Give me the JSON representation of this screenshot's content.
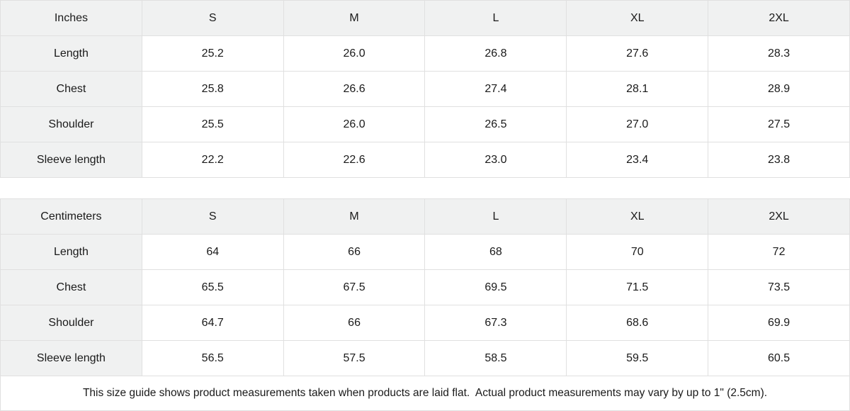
{
  "style": {
    "header_bg": "#f0f1f1",
    "border_color": "#e0e0e0",
    "text_color": "#1a1a1a",
    "background": "#ffffff"
  },
  "chart_data": [
    {
      "type": "table",
      "name": "inches",
      "unit_label": "Inches",
      "columns": [
        "S",
        "M",
        "L",
        "XL",
        "2XL"
      ],
      "rows": [
        {
          "label": "Length",
          "values": [
            "25.2",
            "26.0",
            "26.8",
            "27.6",
            "28.3"
          ]
        },
        {
          "label": "Chest",
          "values": [
            "25.8",
            "26.6",
            "27.4",
            "28.1",
            "28.9"
          ]
        },
        {
          "label": "Shoulder",
          "values": [
            "25.5",
            "26.0",
            "26.5",
            "27.0",
            "27.5"
          ]
        },
        {
          "label": "Sleeve length",
          "values": [
            "22.2",
            "22.6",
            "23.0",
            "23.4",
            "23.8"
          ]
        }
      ]
    },
    {
      "type": "table",
      "name": "centimeters",
      "unit_label": "Centimeters",
      "columns": [
        "S",
        "M",
        "L",
        "XL",
        "2XL"
      ],
      "rows": [
        {
          "label": "Length",
          "values": [
            "64",
            "66",
            "68",
            "70",
            "72"
          ]
        },
        {
          "label": "Chest",
          "values": [
            "65.5",
            "67.5",
            "69.5",
            "71.5",
            "73.5"
          ]
        },
        {
          "label": "Shoulder",
          "values": [
            "64.7",
            "66",
            "67.3",
            "68.6",
            "69.9"
          ]
        },
        {
          "label": "Sleeve length",
          "values": [
            "56.5",
            "57.5",
            "58.5",
            "59.5",
            "60.5"
          ]
        }
      ]
    }
  ],
  "footer": {
    "note": "This size guide shows product measurements taken when products are laid flat.  Actual product measurements may vary by up to 1\" (2.5cm)."
  }
}
